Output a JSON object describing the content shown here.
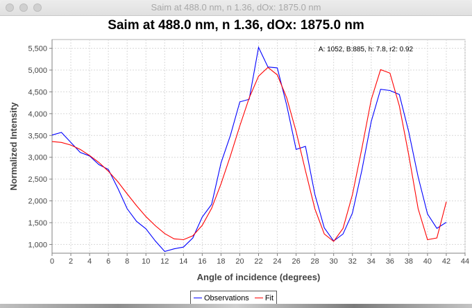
{
  "window": {
    "title": "Saim at 488.0 nm, n 1.36, dOx: 1875.0 nm"
  },
  "chart_data": {
    "type": "line",
    "title": "Saim at 488.0 nm, n 1.36, dOx: 1875.0 nm",
    "xlabel": "Angle of incidence (degrees)",
    "ylabel": "Normalized Intensity",
    "annotation": "A: 1052, B:885, h: 7.8, r2: 0.92",
    "xlim": [
      0,
      44
    ],
    "ylim": [
      800,
      5700
    ],
    "xticks": [
      "0",
      "2",
      "4",
      "6",
      "8",
      "10",
      "12",
      "14",
      "16",
      "18",
      "20",
      "22",
      "24",
      "26",
      "28",
      "30",
      "32",
      "34",
      "36",
      "38",
      "40",
      "42",
      "44"
    ],
    "yticks": [
      "1,000",
      "1,500",
      "2,000",
      "2,500",
      "3,000",
      "3,500",
      "4,000",
      "4,500",
      "5,000",
      "5,500"
    ],
    "ytick_values": [
      1000,
      1500,
      2000,
      2500,
      3000,
      3500,
      4000,
      4500,
      5000,
      5500
    ],
    "grid": true,
    "legend_position": "bottom",
    "series": [
      {
        "name": "Observations",
        "color": "#0000ff",
        "x": [
          0,
          1,
          2,
          3,
          4,
          5,
          6,
          7,
          8,
          9,
          10,
          11,
          12,
          13,
          14,
          15,
          16,
          17,
          18,
          19,
          20,
          21,
          22,
          23,
          24,
          25,
          26,
          27,
          28,
          29,
          30,
          31,
          32,
          33,
          34,
          35,
          36,
          37,
          38,
          39,
          40,
          41,
          42
        ],
        "y": [
          3510,
          3570,
          3340,
          3110,
          3030,
          2830,
          2720,
          2290,
          1820,
          1530,
          1360,
          1080,
          840,
          900,
          940,
          1150,
          1630,
          1920,
          2870,
          3500,
          4270,
          4330,
          5520,
          5070,
          5050,
          4190,
          3180,
          3250,
          2150,
          1380,
          1080,
          1240,
          1720,
          2700,
          3820,
          4560,
          4530,
          4440,
          3580,
          2550,
          1700,
          1370,
          1510
        ]
      },
      {
        "name": "Fit",
        "color": "#ff0000",
        "x": [
          0,
          1,
          2,
          3,
          4,
          5,
          6,
          7,
          8,
          9,
          10,
          11,
          12,
          13,
          14,
          15,
          16,
          17,
          18,
          19,
          20,
          21,
          22,
          23,
          24,
          25,
          26,
          27,
          28,
          29,
          30,
          31,
          32,
          33,
          34,
          35,
          36,
          37,
          38,
          39,
          40,
          41,
          42
        ],
        "y": [
          3360,
          3340,
          3280,
          3180,
          3040,
          2880,
          2680,
          2440,
          2160,
          1890,
          1640,
          1430,
          1250,
          1130,
          1110,
          1200,
          1440,
          1830,
          2390,
          3030,
          3720,
          4360,
          4860,
          5060,
          4890,
          4360,
          3590,
          2690,
          1820,
          1240,
          1070,
          1370,
          2140,
          3200,
          4320,
          5010,
          4930,
          4180,
          3050,
          1820,
          1110,
          1150,
          1980
        ]
      }
    ]
  }
}
